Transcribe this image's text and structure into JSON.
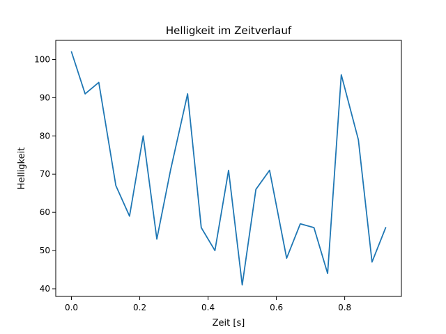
{
  "chart_data": {
    "type": "line",
    "title": "Helligkeit im Zeitverlauf",
    "xlabel": "Zeit [s]",
    "ylabel": "Helligkeit",
    "xlim": [
      -0.046,
      0.966
    ],
    "ylim": [
      38,
      105
    ],
    "xticks": [
      0.0,
      0.2,
      0.4,
      0.6,
      0.8
    ],
    "xtick_labels": [
      "0.0",
      "0.2",
      "0.4",
      "0.6",
      "0.8"
    ],
    "yticks": [
      40,
      50,
      60,
      70,
      80,
      90,
      100
    ],
    "ytick_labels": [
      "40",
      "50",
      "60",
      "70",
      "80",
      "90",
      "100"
    ],
    "grid": false,
    "series": [
      {
        "color": "#1f77b4",
        "x": [
          0.0,
          0.04,
          0.08,
          0.13,
          0.17,
          0.21,
          0.25,
          0.29,
          0.34,
          0.38,
          0.42,
          0.46,
          0.5,
          0.54,
          0.58,
          0.63,
          0.67,
          0.71,
          0.75,
          0.79,
          0.84,
          0.88,
          0.92
        ],
        "values": [
          102,
          91,
          94,
          67,
          59,
          80,
          53,
          71,
          91,
          56,
          50,
          71,
          41,
          66,
          71,
          48,
          57,
          56,
          44,
          96,
          79,
          47,
          56
        ]
      }
    ]
  }
}
